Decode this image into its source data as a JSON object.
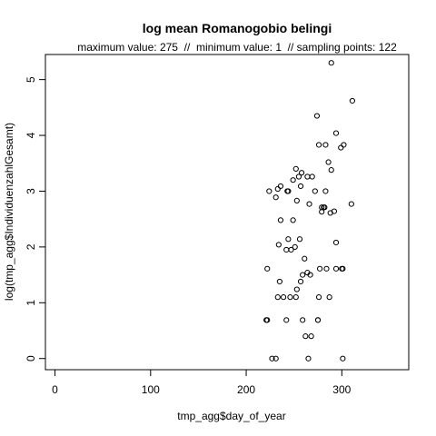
{
  "chart_data": {
    "type": "scatter",
    "title": "log mean Romanogobio belingi",
    "subtitle": "maximum value: 275  //  minimum value: 1  // sampling points: 122",
    "xlabel": "tmp_agg$day_of_year",
    "ylabel": "log(tmp_agg$IndividuenzahlGesamt)",
    "xlim": [
      -10,
      370
    ],
    "ylim": [
      -0.2,
      5.45
    ],
    "xticks": [
      0,
      100,
      200,
      300
    ],
    "yticks": [
      0,
      1,
      2,
      3,
      4,
      5
    ],
    "grid": false,
    "marker": "open-circle",
    "x": [
      227,
      231,
      221,
      222,
      242,
      259,
      268,
      275,
      262,
      265,
      252,
      276,
      287,
      233,
      239,
      246,
      253,
      257,
      267,
      277,
      284,
      294,
      235,
      222,
      242,
      259,
      234,
      247,
      251,
      261,
      256,
      236,
      244,
      249,
      253,
      233,
      279,
      292,
      243,
      257,
      264,
      281,
      231,
      294,
      300,
      264,
      272,
      283,
      286,
      289,
      224,
      236,
      249,
      258,
      276,
      299,
      283,
      252,
      274,
      269,
      255,
      244,
      279,
      288,
      266,
      282,
      310,
      294,
      301,
      275,
      311,
      289,
      302,
      301
    ],
    "y": [
      0,
      0,
      0.69,
      0.69,
      0.69,
      0.69,
      0.4,
      0.69,
      0.4,
      0,
      1.1,
      1.1,
      1.1,
      1.1,
      1.1,
      1.1,
      1.24,
      1.38,
      1.5,
      1.61,
      1.61,
      1.61,
      1.38,
      1.61,
      1.95,
      1.5,
      2.04,
      1.95,
      2.0,
      1.79,
      2.14,
      2.48,
      2.14,
      2.48,
      2.83,
      3.04,
      2.63,
      2.64,
      3.0,
      3.09,
      3.26,
      2.71,
      2.89,
      2.08,
      1.61,
      1.54,
      3.0,
      3.0,
      3.52,
      3.38,
      3.0,
      3.09,
      3.2,
      3.33,
      3.83,
      3.78,
      3.83,
      3.4,
      4.35,
      3.26,
      3.26,
      3.0,
      2.71,
      2.61,
      2.77,
      2.71,
      2.77,
      4.04,
      0,
      0.69,
      4.62,
      5.3,
      3.83,
      1.61
    ]
  }
}
